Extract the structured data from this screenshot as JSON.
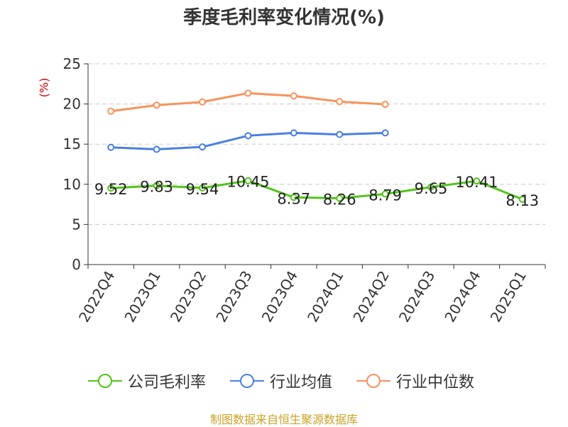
{
  "chart_data": {
    "type": "line",
    "title": "季度毛利率变化情况(%)",
    "ylabel": "(%)",
    "categories": [
      "2022Q4",
      "2023Q1",
      "2023Q2",
      "2023Q3",
      "2023Q4",
      "2024Q1",
      "2024Q2",
      "2024Q3",
      "2024Q4",
      "2025Q1"
    ],
    "ylim": [
      0,
      25
    ],
    "yticks": [
      0,
      5,
      10,
      15,
      20,
      25
    ],
    "grid": true,
    "legend_position": "bottom",
    "series": [
      {
        "name": "公司毛利率",
        "color": "#52c41a",
        "values": [
          9.52,
          9.83,
          9.54,
          10.45,
          8.37,
          8.26,
          8.79,
          9.65,
          10.41,
          8.13
        ],
        "labels": [
          "9.52",
          "9.83",
          "9.54",
          "10.45",
          "8.37",
          "8.26",
          "8.79",
          "9.65",
          "10.41",
          "8.13"
        ]
      },
      {
        "name": "行业均值",
        "color": "#4a7fe0",
        "values": [
          14.6,
          14.35,
          14.65,
          16.05,
          16.4,
          16.2,
          16.4,
          null,
          null,
          null
        ]
      },
      {
        "name": "行业中位数",
        "color": "#f7935c",
        "values": [
          19.1,
          19.85,
          20.25,
          21.35,
          21.0,
          20.3,
          19.95,
          null,
          null,
          null
        ]
      }
    ]
  },
  "source": "制图数据来自恒生聚源数据库"
}
